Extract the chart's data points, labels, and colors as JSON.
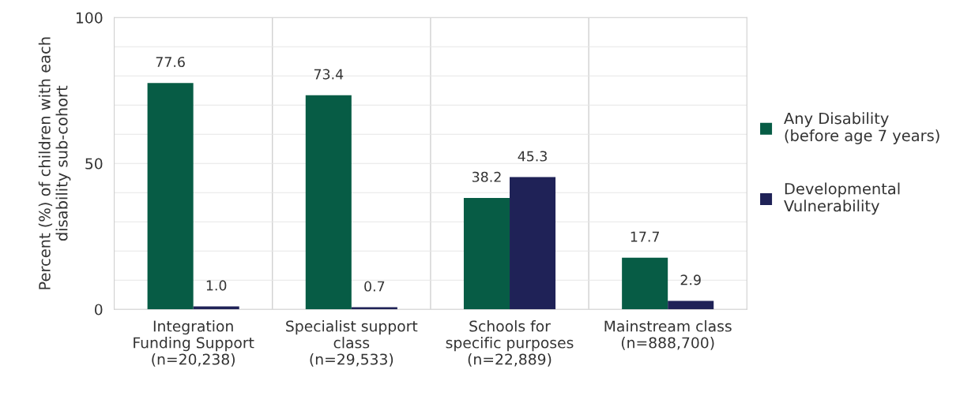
{
  "chart_data": {
    "type": "bar",
    "ylabel": "Percent (%) of children with each\ndisability sub-cohort",
    "categories": [
      "Integration\nFunding Support\n(n=20,238)",
      "Specialist support\nclass\n(n=29,533)",
      "Schools for\nspecific purposes\n(n=22,889)",
      "Mainstream class\n(n=888,700)"
    ],
    "series": [
      {
        "name": "Any Disability\n(before age 7 years)",
        "color": "#075c45",
        "values": [
          77.6,
          73.4,
          38.2,
          17.7
        ],
        "value_labels": [
          "77.6",
          "73.4",
          "38.2",
          "17.7"
        ]
      },
      {
        "name": "Developmental\nVulnerability",
        "color": "#1f2257",
        "values": [
          1.0,
          0.7,
          45.3,
          2.9
        ],
        "value_labels": [
          "1.0",
          "0.7",
          "45.3",
          "2.9"
        ]
      }
    ],
    "ylim": [
      0,
      100
    ],
    "yticks": [
      0,
      {
        "value": 10,
        "label": null
      },
      {
        "value": 20,
        "label": null
      },
      {
        "value": 30,
        "label": null
      },
      {
        "value": 40,
        "label": null
      },
      50,
      {
        "value": 60,
        "label": null
      },
      {
        "value": 70,
        "label": null
      },
      {
        "value": 80,
        "label": null
      },
      {
        "value": 90,
        "label": null
      },
      100
    ],
    "grid": true,
    "legend": "right"
  }
}
